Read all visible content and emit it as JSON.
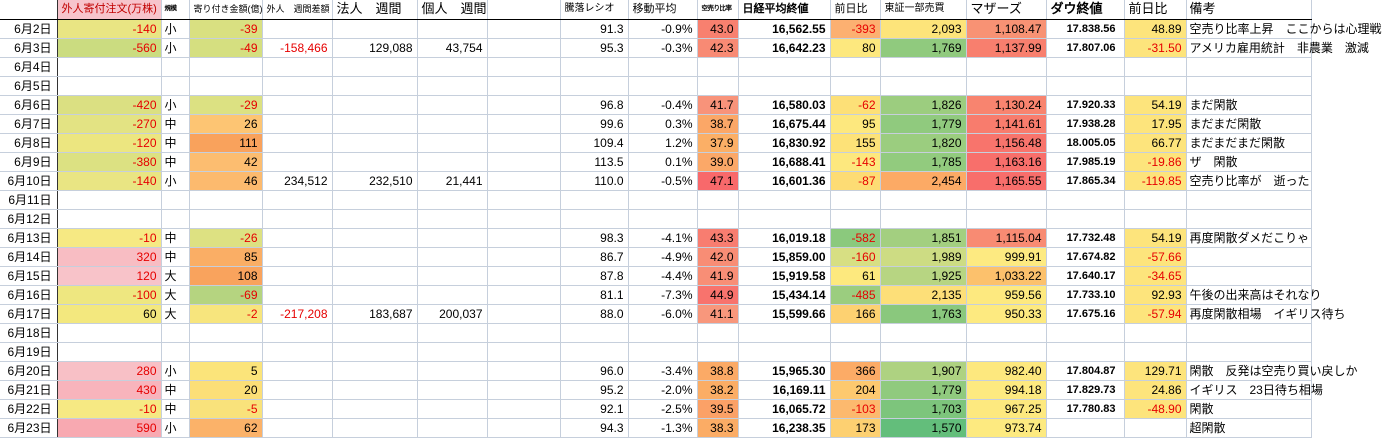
{
  "table": {
    "columns": [
      {
        "key": "date",
        "label": "",
        "width": 57
      },
      {
        "key": "foreign_open_orders",
        "label": "外人寄付注文(万株)",
        "width": 104,
        "header_bg": "#f7c4cc",
        "header_fg": "#c00000",
        "header_size": 11
      },
      {
        "key": "size",
        "label": "規模",
        "width": 28,
        "header_size": 6.5
      },
      {
        "key": "opening_amount",
        "label": "寄り付き金額(億)",
        "width": 73,
        "header_size": 9
      },
      {
        "key": "foreign_weekly",
        "label": "外人　週間差額",
        "width": 70,
        "header_size": 9
      },
      {
        "key": "corporate_weekly",
        "label": "法人　週間",
        "width": 85,
        "header_size": 13
      },
      {
        "key": "individual_weekly",
        "label": "個人　週間",
        "width": 70,
        "header_size": 13
      },
      {
        "key": "spacer",
        "label": "",
        "width": 73
      },
      {
        "key": "updown_ratio",
        "label": "騰落レシオ",
        "width": 68,
        "header_size": 10
      },
      {
        "key": "moving_average",
        "label": "移動平均",
        "width": 69,
        "header_size": 11
      },
      {
        "key": "short_sell_ratio",
        "label": "空売り比率",
        "width": 41,
        "header_size": 6.5
      },
      {
        "key": "nikkei_close",
        "label": "日経平均終値",
        "width": 92,
        "header_size": 11,
        "header_bold": true
      },
      {
        "key": "nikkei_change",
        "label": "前日比",
        "width": 50,
        "header_size": 11
      },
      {
        "key": "tse1_volume",
        "label": "東証一部売買",
        "width": 86,
        "header_size": 10
      },
      {
        "key": "mothers_index",
        "label": "マザーズ",
        "width": 80,
        "header_size": 13
      },
      {
        "key": "dow_close",
        "label": "ダウ終値",
        "width": 78,
        "header_size": 13,
        "header_bold": true
      },
      {
        "key": "dow_change",
        "label": "前日比",
        "width": 62,
        "header_size": 13
      },
      {
        "key": "remarks",
        "label": "備考",
        "width": 125,
        "header_size": 13
      }
    ],
    "rows": [
      {
        "cells": [
          "6月2日",
          {
            "v": "-140",
            "bg": "#e9e583",
            "fg": "red"
          },
          "小",
          {
            "v": "-39",
            "bg": "#d9e081",
            "fg": "red"
          },
          "",
          "",
          "",
          "",
          "91.3",
          "-0.9%",
          {
            "v": "43.0",
            "bg": "#f8806f"
          },
          "16,562.55",
          {
            "v": "-393",
            "bg": "#fcb071",
            "fg": "red"
          },
          {
            "v": "2,093",
            "bg": "#fde47a"
          },
          {
            "v": "1,108.47",
            "bg": "#f89274"
          },
          "17.838.56",
          {
            "v": "48.89",
            "bg": "#fde47c"
          },
          "空売り比率上昇　ここからは心理戦"
        ]
      },
      {
        "cells": [
          "6月3日",
          {
            "v": "-560",
            "bg": "#cbdc80",
            "fg": "red"
          },
          "小",
          {
            "v": "-49",
            "bg": "#d5df80",
            "fg": "red"
          },
          {
            "v": "-158,466",
            "fg": "red"
          },
          "129,088",
          "43,754",
          "",
          "95.3",
          "-0.3%",
          {
            "v": "42.3",
            "bg": "#f88a74"
          },
          "16,642.23",
          {
            "v": "80",
            "bg": "#fde87e"
          },
          {
            "v": "1,769",
            "bg": "#90ca7e"
          },
          {
            "v": "1,137.99",
            "bg": "#f87f6e"
          },
          "17.807.06",
          {
            "v": "-31.50",
            "bg": "#fde47c",
            "fg": "red"
          },
          "アメリカ雇用統計　非農業　激減"
        ]
      },
      {
        "cells": [
          "6月4日",
          "",
          "",
          "",
          "",
          "",
          "",
          "",
          "",
          "",
          "",
          "",
          "",
          "",
          "",
          "",
          "",
          ""
        ]
      },
      {
        "cells": [
          "6月5日",
          "",
          "",
          "",
          "",
          "",
          "",
          "",
          "",
          "",
          "",
          "",
          "",
          "",
          "",
          "",
          "",
          ""
        ]
      },
      {
        "cells": [
          "6月6日",
          {
            "v": "-420",
            "bg": "#dbe082",
            "fg": "red"
          },
          "小",
          {
            "v": "-29",
            "bg": "#dce182",
            "fg": "red"
          },
          "",
          "",
          "",
          "",
          "96.8",
          "-0.4%",
          {
            "v": "41.7",
            "bg": "#f8937a"
          },
          "16,580.03",
          {
            "v": "-62",
            "bg": "#fde077",
            "fg": "red"
          },
          {
            "v": "1,826",
            "bg": "#9ccd7f"
          },
          {
            "v": "1,130.24",
            "bg": "#f8846f"
          },
          "17.920.33",
          {
            "v": "54.19",
            "bg": "#fde47c"
          },
          "まだ閑散"
        ]
      },
      {
        "cells": [
          "6月7日",
          {
            "v": "-270",
            "bg": "#e3e383",
            "fg": "red"
          },
          "中",
          {
            "v": "26",
            "bg": "#fdc573"
          },
          "",
          "",
          "",
          "",
          "99.6",
          "0.3%",
          {
            "v": "38.7",
            "bg": "#fba767"
          },
          "16,675.44",
          {
            "v": "95",
            "bg": "#fde87e"
          },
          {
            "v": "1,779",
            "bg": "#90ca7e"
          },
          {
            "v": "1,141.61",
            "bg": "#f87c6d"
          },
          "17.938.28",
          {
            "v": "17.95",
            "bg": "#fde47c"
          },
          "まだまだ閑散"
        ]
      },
      {
        "cells": [
          "6月8日",
          {
            "v": "-120",
            "bg": "#ece680",
            "fg": "red"
          },
          "中",
          {
            "v": "111",
            "bg": "#f9a25c"
          },
          "",
          "",
          "",
          "",
          "109.4",
          "1.2%",
          {
            "v": "37.9",
            "bg": "#fbaf66"
          },
          "16,830.92",
          {
            "v": "155",
            "bg": "#fde278"
          },
          {
            "v": "1,820",
            "bg": "#9bcd7f"
          },
          {
            "v": "1,156.48",
            "bg": "#f8746c"
          },
          "18.005.05",
          {
            "v": "66.77",
            "bg": "#fde47c"
          },
          "まだまだまだ閑散"
        ]
      },
      {
        "cells": [
          "6月9日",
          {
            "v": "-380",
            "bg": "#dce182",
            "fg": "red"
          },
          "中",
          {
            "v": "42",
            "bg": "#fcbd70"
          },
          "",
          "",
          "",
          "",
          "113.5",
          "0.1%",
          {
            "v": "39.0",
            "bg": "#fba868"
          },
          "16,688.41",
          {
            "v": "-143",
            "bg": "#fde87e",
            "fg": "red"
          },
          {
            "v": "1,785",
            "bg": "#92cb7e"
          },
          {
            "v": "1,163.16",
            "bg": "#f86f6b"
          },
          "17.985.19",
          {
            "v": "-19.86",
            "bg": "#fde47c",
            "fg": "red"
          },
          "ザ　閑散"
        ]
      },
      {
        "cells": [
          "6月10日",
          {
            "v": "-140",
            "bg": "#e9e583",
            "fg": "red"
          },
          "小",
          {
            "v": "46",
            "bg": "#fcba6e"
          },
          "234,512",
          "232,510",
          "21,441",
          "",
          "110.0",
          "-0.5%",
          {
            "v": "47.1",
            "bg": "#f8696b"
          },
          "16,601.36",
          {
            "v": "-87",
            "bg": "#fddc74",
            "fg": "red"
          },
          {
            "v": "2,454",
            "bg": "#fcaa65"
          },
          {
            "v": "1,165.55",
            "bg": "#f86e6b"
          },
          "17.865.34",
          {
            "v": "-119.85",
            "bg": "#fde47c",
            "fg": "red"
          },
          "空売り比率が　逝った"
        ]
      },
      {
        "cells": [
          "6月11日",
          "",
          "",
          "",
          "",
          "",
          "",
          "",
          "",
          "",
          "",
          "",
          "",
          "",
          "",
          "",
          "",
          ""
        ]
      },
      {
        "cells": [
          "6月12日",
          "",
          "",
          "",
          "",
          "",
          "",
          "",
          "",
          "",
          "",
          "",
          "",
          "",
          "",
          "",
          "",
          ""
        ]
      },
      {
        "cells": [
          "6月13日",
          {
            "v": "-10",
            "bg": "#f6e983",
            "fg": "red"
          },
          "中",
          {
            "v": "-26",
            "bg": "#dde182",
            "fg": "red"
          },
          "",
          "",
          "",
          "",
          "98.3",
          "-4.1%",
          {
            "v": "43.3",
            "bg": "#f87d70"
          },
          "16,019.18",
          {
            "v": "-582",
            "bg": "#8bc97d",
            "fg": "red"
          },
          {
            "v": "1,851",
            "bg": "#a3cf80"
          },
          {
            "v": "1,115.04",
            "bg": "#f88b73"
          },
          "17.732.48",
          {
            "v": "54.19",
            "bg": "#fde47c"
          },
          "再度閑散ダメだこりゃ"
        ]
      },
      {
        "cells": [
          "6月14日",
          {
            "v": "320",
            "bg": "#f8bdc3",
            "fg": "red"
          },
          "中",
          {
            "v": "85",
            "bg": "#faae65"
          },
          "",
          "",
          "",
          "",
          "86.7",
          "-4.9%",
          {
            "v": "42.0",
            "bg": "#f88d75"
          },
          "15,859.00",
          {
            "v": "-160",
            "bg": "#d7df83",
            "fg": "red"
          },
          {
            "v": "1,989",
            "bg": "#cddc83"
          },
          {
            "v": "999.91",
            "bg": "#fdea81"
          },
          "17.674.82",
          {
            "v": "-57.66",
            "bg": "#fde47c",
            "fg": "red"
          },
          ""
        ]
      },
      {
        "cells": [
          "6月15日",
          {
            "v": "120",
            "bg": "#f8c3c9",
            "fg": "red"
          },
          "大",
          {
            "v": "108",
            "bg": "#f9a35d"
          },
          "",
          "",
          "",
          "",
          "87.8",
          "-4.4%",
          {
            "v": "41.9",
            "bg": "#f88e76"
          },
          "15,919.58",
          {
            "v": "61",
            "bg": "#fde97e"
          },
          {
            "v": "1,925",
            "bg": "#b7d582"
          },
          {
            "v": "1,033.22",
            "bg": "#fcc16c"
          },
          "17.640.17",
          {
            "v": "-34.65",
            "bg": "#fde47c",
            "fg": "red"
          },
          ""
        ]
      },
      {
        "cells": [
          "6月16日",
          {
            "v": "-100",
            "bg": "#eee780",
            "fg": "red"
          },
          "大",
          {
            "v": "-69",
            "bg": "#b5d480",
            "fg": "red"
          },
          "",
          "",
          "",
          "",
          "81.1",
          "-7.3%",
          {
            "v": "44.9",
            "bg": "#f8736d"
          },
          "15,434.14",
          {
            "v": "-485",
            "bg": "#9bcd7f",
            "fg": "red"
          },
          {
            "v": "2,135",
            "bg": "#fddf78"
          },
          {
            "v": "959.56",
            "bg": "#fde97f"
          },
          "17.733.10",
          {
            "v": "92.93",
            "bg": "#fde47c"
          },
          "午後の出来高はそれなり"
        ]
      },
      {
        "cells": [
          "6月17日",
          {
            "v": "60",
            "bg": "#f3e87e"
          },
          "大",
          {
            "v": "-2",
            "bg": "#f7e57d",
            "fg": "red"
          },
          {
            "v": "-217,208",
            "fg": "red"
          },
          "183,687",
          "200,037",
          "",
          "88.0",
          "-6.0%",
          {
            "v": "41.1",
            "bg": "#f8977c"
          },
          "15,599.66",
          {
            "v": "166",
            "bg": "#fdd171"
          },
          {
            "v": "1,763",
            "bg": "#8ac87d"
          },
          {
            "v": "950.33",
            "bg": "#fdea80"
          },
          "17.675.16",
          {
            "v": "-57.94",
            "bg": "#fde47c",
            "fg": "red"
          },
          "再度閑散相場　イギリス待ち"
        ]
      },
      {
        "cells": [
          "6月18日",
          "",
          "",
          "",
          "",
          "",
          "",
          "",
          "",
          "",
          "",
          "",
          "",
          "",
          "",
          "",
          "",
          ""
        ]
      },
      {
        "cells": [
          "6月19日",
          "",
          "",
          "",
          "",
          "",
          "",
          "",
          "",
          "",
          "",
          "",
          "",
          "",
          "",
          "",
          "",
          ""
        ]
      },
      {
        "cells": [
          "6月20日",
          {
            "v": "280",
            "bg": "#f8c0c6",
            "fg": "red"
          },
          "小",
          {
            "v": "5",
            "bg": "#fbe47a"
          },
          "",
          "",
          "",
          "",
          "96.0",
          "-3.4%",
          {
            "v": "38.8",
            "bg": "#fbaa66"
          },
          "15,965.30",
          {
            "v": "366",
            "bg": "#fcab66"
          },
          {
            "v": "1,907",
            "bg": "#aed281"
          },
          {
            "v": "982.40",
            "bg": "#fde87e"
          },
          "17.804.87",
          {
            "v": "129.71",
            "bg": "#fde47c"
          },
          "閑散　反発は空売り買い戻しか"
        ]
      },
      {
        "cells": [
          "6月21日",
          {
            "v": "430",
            "bg": "#f8b4bc",
            "fg": "red"
          },
          "中",
          {
            "v": "20",
            "bg": "#fcdf77"
          },
          "",
          "",
          "",
          "",
          "95.2",
          "-2.0%",
          {
            "v": "38.2",
            "bg": "#fbad65"
          },
          "16,169.11",
          {
            "v": "204",
            "bg": "#fdc96f"
          },
          {
            "v": "1,779",
            "bg": "#90ca7e"
          },
          {
            "v": "994.18",
            "bg": "#fdea80"
          },
          "17.829.73",
          {
            "v": "24.86",
            "bg": "#fde47c"
          },
          "イギリス　23日待ち相場"
        ]
      },
      {
        "cells": [
          "6月22日",
          {
            "v": "-10",
            "bg": "#f6e983",
            "fg": "red"
          },
          "中",
          {
            "v": "-5",
            "bg": "#f9e27b",
            "fg": "red"
          },
          "",
          "",
          "",
          "",
          "92.1",
          "-2.5%",
          {
            "v": "39.5",
            "bg": "#fba167"
          },
          "16,065.72",
          {
            "v": "-103",
            "bg": "#fcb96e",
            "fg": "red"
          },
          {
            "v": "1,703",
            "bg": "#7dc57c"
          },
          {
            "v": "967.25",
            "bg": "#fde97f"
          },
          "17.780.83",
          {
            "v": "-48.90",
            "bg": "#fde47c",
            "fg": "red"
          },
          "閑散"
        ]
      },
      {
        "cells": [
          "6月23日",
          {
            "v": "590",
            "bg": "#f8a9b1",
            "fg": "red"
          },
          "小",
          {
            "v": "62",
            "bg": "#fbb269"
          },
          "",
          "",
          "",
          "",
          "94.3",
          "-1.3%",
          {
            "v": "38.3",
            "bg": "#fbac65"
          },
          "16,238.35",
          {
            "v": "173",
            "bg": "#fdd071"
          },
          {
            "v": "1,570",
            "bg": "#63be7b"
          },
          {
            "v": "973.74",
            "bg": "#fdea80"
          },
          "",
          "",
          "超閑散"
        ]
      }
    ]
  },
  "colors": {
    "negative_text": "#e60000",
    "gridline": "#c6cfdc",
    "header_pink": "#f7c4cc",
    "heat_red": "#f8696b",
    "heat_yellow": "#fde87e",
    "heat_green": "#63be7b"
  }
}
